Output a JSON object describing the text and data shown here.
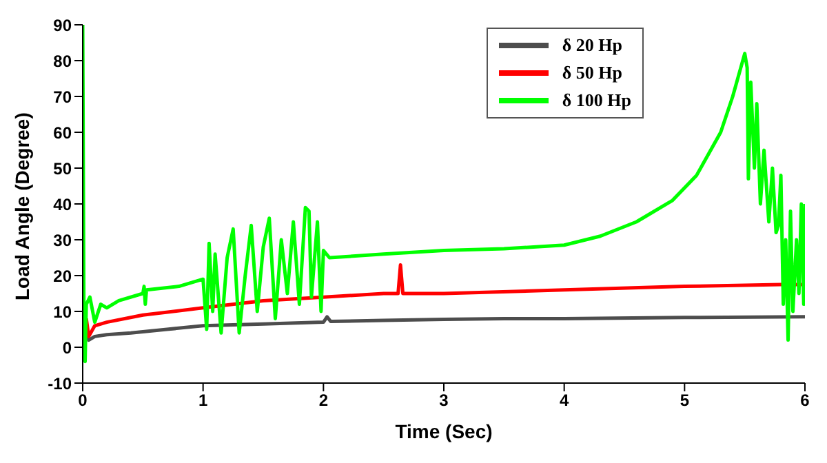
{
  "chart_data": {
    "type": "line",
    "xlabel": "Time (Sec)",
    "ylabel": "Load Angle (Degree)",
    "xlim": [
      0,
      6
    ],
    "xticks": [
      0,
      1,
      2,
      3,
      4,
      5,
      6
    ],
    "ylim": [
      -10,
      90
    ],
    "yticks": [
      -10,
      0,
      10,
      20,
      30,
      40,
      50,
      60,
      70,
      80,
      90
    ],
    "grid": false,
    "legend": "top right",
    "marker": "none",
    "line_style": "solid",
    "series": [
      {
        "name": "δ 20 Hp",
        "color": "#4d4d4d",
        "x": [
          0.03,
          0.05,
          0.1,
          0.2,
          0.4,
          0.7,
          1.0,
          1.5,
          2.0,
          2.03,
          2.06,
          2.5,
          3.0,
          3.5,
          4.0,
          5.0,
          6.0
        ],
        "values": [
          3,
          2,
          3,
          3.5,
          4,
          5,
          6,
          6.5,
          7,
          8.5,
          7.2,
          7.5,
          7.8,
          8,
          8,
          8.3,
          8.5
        ]
      },
      {
        "name": "δ 50 Hp",
        "color": "#ff0000",
        "x": [
          0.03,
          0.05,
          0.1,
          0.2,
          0.5,
          1.0,
          1.5,
          2.0,
          2.5,
          2.62,
          2.64,
          2.66,
          3.0,
          4.0,
          5.0,
          5.8,
          6.0
        ],
        "values": [
          8,
          3,
          6,
          7,
          9,
          11,
          13,
          14,
          15,
          15,
          23,
          15,
          15,
          16,
          17,
          17.5,
          17.5
        ]
      },
      {
        "name": "δ 100 Hp",
        "color": "#00ff00",
        "x": [
          0.0,
          0.01,
          0.02,
          0.03,
          0.06,
          0.1,
          0.15,
          0.2,
          0.3,
          0.5,
          0.51,
          0.52,
          0.53,
          0.8,
          1.0,
          1.03,
          1.05,
          1.08,
          1.1,
          1.15,
          1.2,
          1.25,
          1.3,
          1.35,
          1.4,
          1.45,
          1.5,
          1.55,
          1.6,
          1.65,
          1.7,
          1.75,
          1.8,
          1.85,
          1.88,
          1.9,
          1.95,
          1.98,
          2.0,
          2.05,
          2.5,
          3.0,
          3.5,
          4.0,
          4.3,
          4.6,
          4.9,
          5.1,
          5.3,
          5.4,
          5.5,
          5.52,
          5.53,
          5.55,
          5.58,
          5.6,
          5.63,
          5.66,
          5.7,
          5.73,
          5.76,
          5.78,
          5.8,
          5.82,
          5.84,
          5.86,
          5.88,
          5.9,
          5.93,
          5.95,
          5.97,
          5.99,
          6.0
        ],
        "values": [
          90,
          10,
          -4,
          12,
          14,
          7,
          12,
          11,
          13,
          15,
          17,
          12,
          16,
          17,
          19,
          5,
          29,
          10,
          26,
          4,
          25,
          33,
          4,
          20,
          34,
          10,
          28,
          36,
          8,
          30,
          15,
          35,
          12,
          39,
          38,
          14,
          35,
          10,
          27,
          25,
          26,
          27,
          27.5,
          28.5,
          31,
          35,
          41,
          48,
          60,
          70,
          82,
          78,
          47,
          74,
          50,
          68,
          40,
          55,
          35,
          50,
          32,
          34,
          48,
          12,
          30,
          2,
          38,
          10,
          30,
          15,
          40,
          12,
          40
        ]
      }
    ]
  }
}
